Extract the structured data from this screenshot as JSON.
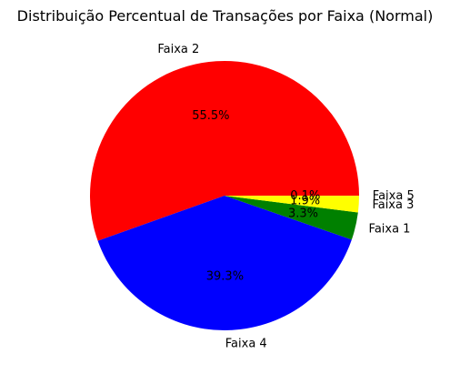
{
  "chart_data": {
    "type": "pie",
    "title": "Distribuição Percentual de Transações por Faixa (Normal)",
    "slices": [
      {
        "label": "Faixa 2",
        "value": 55.5,
        "pct_label": "55.5%",
        "color": "#ff0000"
      },
      {
        "label": "Faixa 4",
        "value": 39.3,
        "pct_label": "39.3%",
        "color": "#0000ff"
      },
      {
        "label": "Faixa 1",
        "value": 3.3,
        "pct_label": "3.3%",
        "color": "#008000"
      },
      {
        "label": "Faixa 3",
        "value": 1.9,
        "pct_label": "1.9%",
        "color": "#ffff00"
      },
      {
        "label": "Faixa 5",
        "value": 0.1,
        "pct_label": "0.1%",
        "color": "#ffff00"
      }
    ],
    "start_angle": 0,
    "direction": "counterclockwise",
    "legend": "none"
  }
}
